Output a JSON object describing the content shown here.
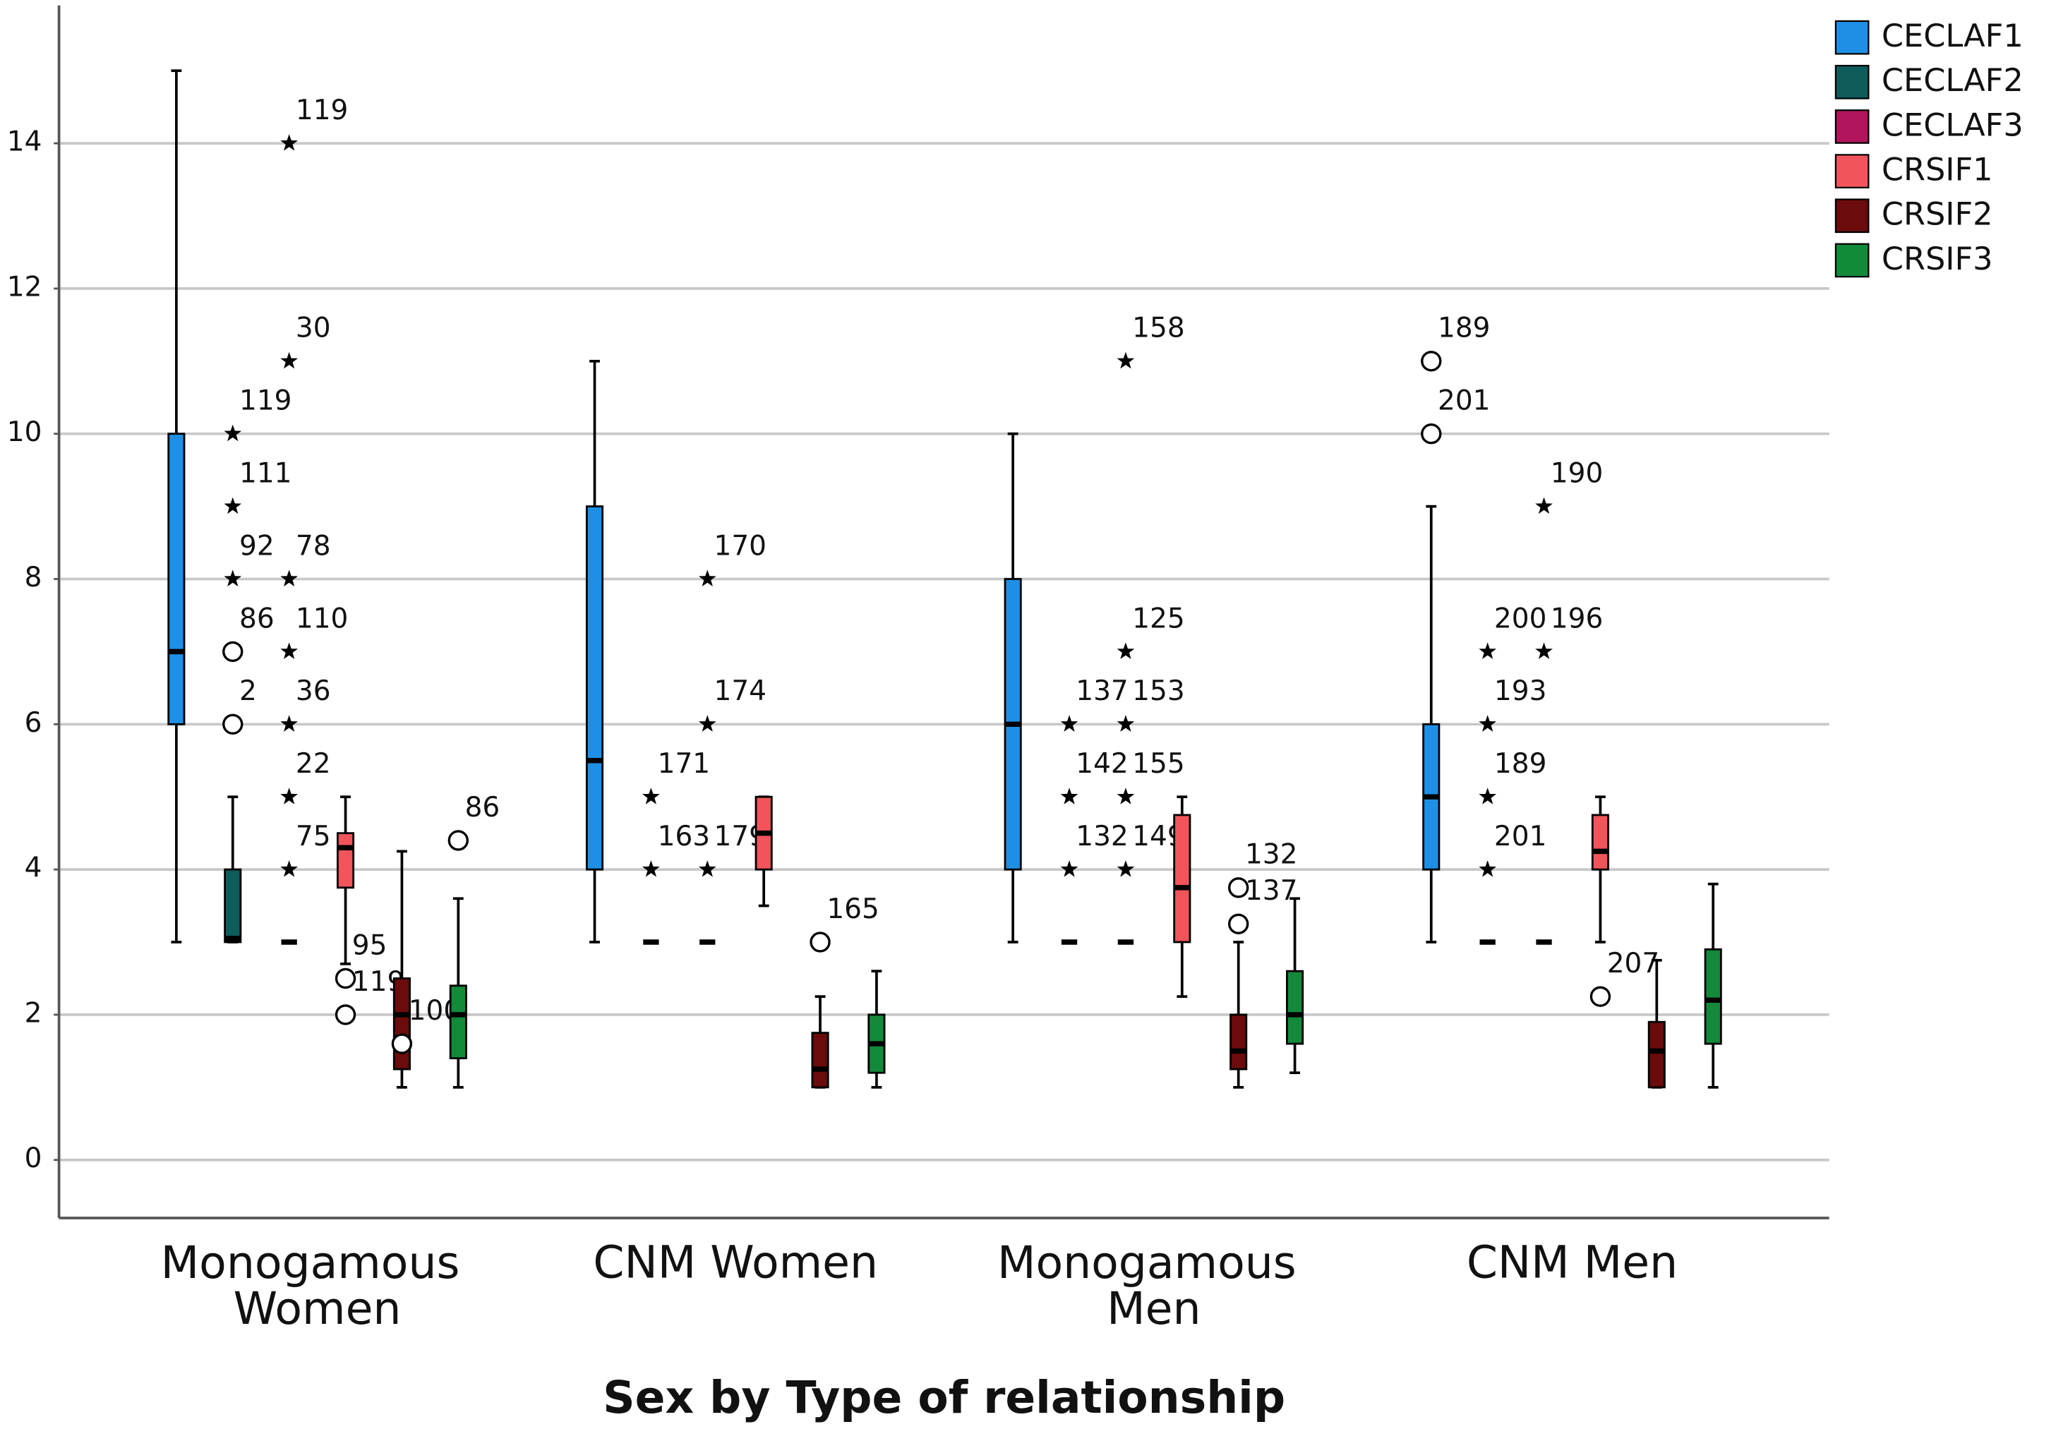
{
  "chart_data": {
    "type": "boxplot",
    "xlabel": "Sex by Type of relationship",
    "categories": [
      "Monogamous Women",
      "CNM Women",
      "Monogamous Men",
      "CNM Men"
    ],
    "ylim": [
      -0.8,
      15.9
    ],
    "yticks": [
      0,
      2,
      4,
      6,
      8,
      10,
      12,
      14
    ],
    "grid": true,
    "legend": "top-right",
    "series": [
      {
        "name": "CECLAF1",
        "color": "#1f8fe5",
        "boxes": [
          {
            "min": 3,
            "q1": 6,
            "median": 7,
            "q3": 10,
            "max": 15
          },
          {
            "min": 3,
            "q1": 4,
            "median": 5.5,
            "q3": 9,
            "max": 11
          },
          {
            "min": 3,
            "q1": 4,
            "median": 6,
            "q3": 8,
            "max": 10
          },
          {
            "min": 3,
            "q1": 4,
            "median": 5,
            "q3": 6,
            "max": 9
          }
        ],
        "outliers": [
          [],
          [],
          [],
          [
            {
              "value": 11,
              "label": "189",
              "marker": "o"
            },
            {
              "value": 10,
              "label": "201",
              "marker": "o"
            }
          ]
        ]
      },
      {
        "name": "CECLAF2",
        "color": "#0e5c5c",
        "boxes": [
          {
            "min": 3,
            "q1": 3,
            "median": 3.05,
            "q3": 4,
            "max": 5
          },
          {
            "min": 3,
            "q1": 3,
            "median": 3,
            "q3": 3,
            "max": 3
          },
          {
            "min": 3,
            "q1": 3,
            "median": 3,
            "q3": 3,
            "max": 3
          },
          {
            "min": 3,
            "q1": 3,
            "median": 3,
            "q3": 3,
            "max": 3
          }
        ],
        "outliers": [
          [
            {
              "value": 10,
              "label": "119",
              "marker": "*"
            },
            {
              "value": 9,
              "label": "111",
              "marker": "*"
            },
            {
              "value": 8,
              "label": "92",
              "marker": "*"
            },
            {
              "value": 7,
              "label": "86",
              "marker": "o"
            },
            {
              "value": 6,
              "label": "2",
              "marker": "o"
            }
          ],
          [
            {
              "value": 5,
              "label": "171",
              "marker": "*"
            },
            {
              "value": 4,
              "label": "163",
              "marker": "*"
            }
          ],
          [
            {
              "value": 6,
              "label": "137",
              "marker": "*"
            },
            {
              "value": 5,
              "label": "142",
              "marker": "*"
            },
            {
              "value": 4,
              "label": "132",
              "marker": "*"
            }
          ],
          [
            {
              "value": 7,
              "label": "200",
              "marker": "*"
            },
            {
              "value": 6,
              "label": "193",
              "marker": "*"
            },
            {
              "value": 5,
              "label": "189",
              "marker": "*"
            },
            {
              "value": 4,
              "label": "201",
              "marker": "*"
            }
          ]
        ]
      },
      {
        "name": "CECLAF3",
        "color": "#b0155c",
        "boxes": [
          {
            "min": 3,
            "q1": 3,
            "median": 3,
            "q3": 3,
            "max": 3
          },
          {
            "min": 3,
            "q1": 3,
            "median": 3,
            "q3": 3,
            "max": 3
          },
          {
            "min": 3,
            "q1": 3,
            "median": 3,
            "q3": 3,
            "max": 3
          },
          {
            "min": 3,
            "q1": 3,
            "median": 3,
            "q3": 3,
            "max": 3
          }
        ],
        "outliers": [
          [
            {
              "value": 14,
              "label": "119",
              "marker": "*"
            },
            {
              "value": 11,
              "label": "30",
              "marker": "*"
            },
            {
              "value": 8,
              "label": "78",
              "marker": "*"
            },
            {
              "value": 7,
              "label": "110",
              "marker": "*"
            },
            {
              "value": 6,
              "label": "36",
              "marker": "*"
            },
            {
              "value": 5,
              "label": "22",
              "marker": "*"
            },
            {
              "value": 4,
              "label": "75",
              "marker": "*"
            }
          ],
          [
            {
              "value": 8,
              "label": "170",
              "marker": "*"
            },
            {
              "value": 6,
              "label": "174",
              "marker": "*"
            },
            {
              "value": 4,
              "label": "179",
              "marker": "*"
            }
          ],
          [
            {
              "value": 11,
              "label": "158",
              "marker": "*"
            },
            {
              "value": 7,
              "label": "125",
              "marker": "*"
            },
            {
              "value": 6,
              "label": "153",
              "marker": "*"
            },
            {
              "value": 5,
              "label": "155",
              "marker": "*"
            },
            {
              "value": 4,
              "label": "149",
              "marker": "*"
            }
          ],
          [
            {
              "value": 9,
              "label": "190",
              "marker": "*"
            },
            {
              "value": 7,
              "label": "196",
              "marker": "*"
            }
          ]
        ]
      },
      {
        "name": "CRSIF1",
        "color": "#f2545b",
        "boxes": [
          {
            "min": 2.7,
            "q1": 3.75,
            "median": 4.3,
            "q3": 4.5,
            "max": 5
          },
          {
            "min": 3.5,
            "q1": 4,
            "median": 4.5,
            "q3": 5,
            "max": 5
          },
          {
            "min": 2.25,
            "q1": 3,
            "median": 3.75,
            "q3": 4.75,
            "max": 5
          },
          {
            "min": 3,
            "q1": 4,
            "median": 4.25,
            "q3": 4.75,
            "max": 5
          }
        ],
        "outliers": [
          [
            {
              "value": 2.5,
              "label": "95",
              "marker": "o"
            },
            {
              "value": 2,
              "label": "119",
              "marker": "o"
            }
          ],
          [],
          [],
          [
            {
              "value": 2.25,
              "label": "207",
              "marker": "o"
            }
          ]
        ]
      },
      {
        "name": "CRSIF2",
        "color": "#6b0b0b",
        "boxes": [
          {
            "min": 1,
            "q1": 1.25,
            "median": 2,
            "q3": 2.5,
            "max": 4.25
          },
          {
            "min": 1,
            "q1": 1,
            "median": 1.25,
            "q3": 1.75,
            "max": 2.25
          },
          {
            "min": 1,
            "q1": 1.25,
            "median": 1.5,
            "q3": 2,
            "max": 3
          },
          {
            "min": 1,
            "q1": 1,
            "median": 1.5,
            "q3": 1.9,
            "max": 2.75
          }
        ],
        "outliers": [
          [
            {
              "value": 1.6,
              "label": "100",
              "marker": "o"
            }
          ],
          [
            {
              "value": 3,
              "label": "165",
              "marker": "o"
            }
          ],
          [
            {
              "value": 3.75,
              "label": "132",
              "marker": "o"
            },
            {
              "value": 3.25,
              "label": "137",
              "marker": "o"
            }
          ],
          []
        ]
      },
      {
        "name": "CRSIF3",
        "color": "#138a3a",
        "boxes": [
          {
            "min": 1,
            "q1": 1.4,
            "median": 2,
            "q3": 2.4,
            "max": 3.6
          },
          {
            "min": 1,
            "q1": 1.2,
            "median": 1.6,
            "q3": 2,
            "max": 2.6
          },
          {
            "min": 1.2,
            "q1": 1.6,
            "median": 2,
            "q3": 2.6,
            "max": 3.6
          },
          {
            "min": 1,
            "q1": 1.6,
            "median": 2.2,
            "q3": 2.9,
            "max": 3.8
          }
        ],
        "outliers": [
          [
            {
              "value": 4.4,
              "label": "86",
              "marker": "o"
            }
          ],
          [],
          [],
          []
        ]
      }
    ]
  }
}
